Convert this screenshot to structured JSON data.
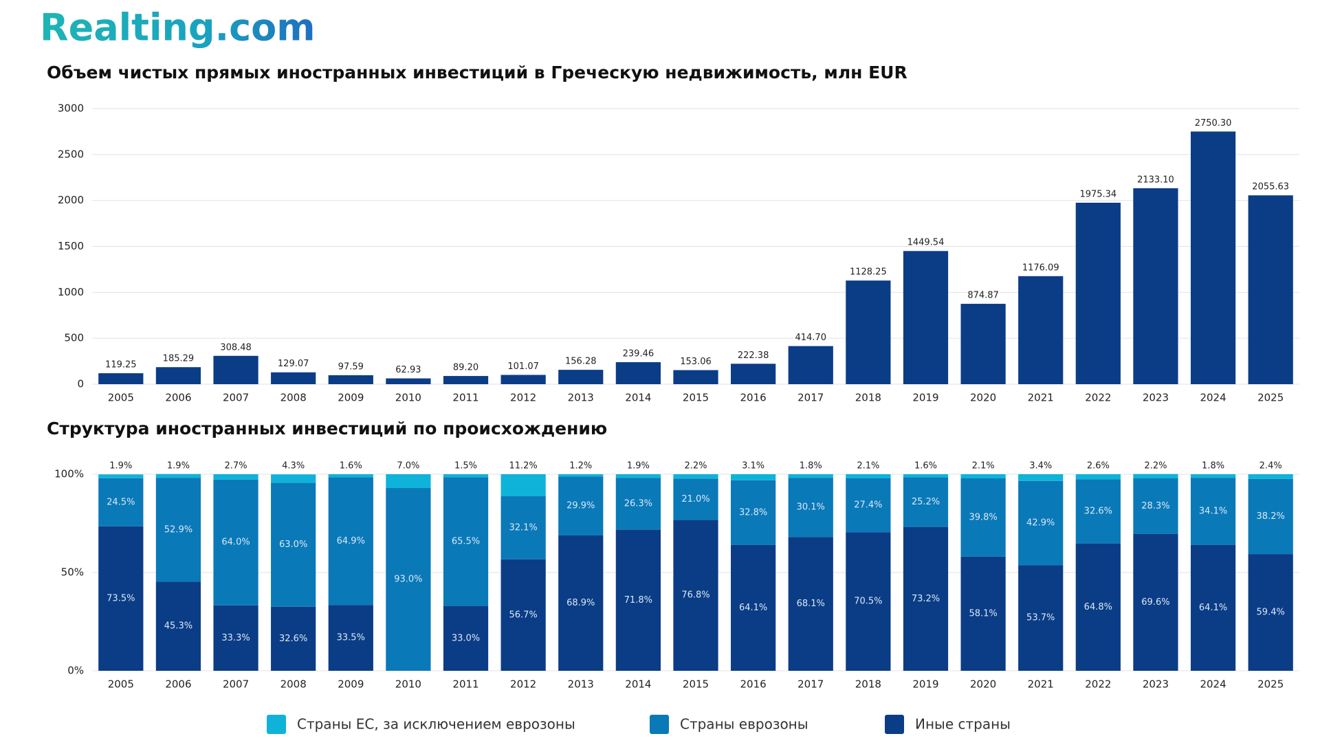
{
  "header": {
    "logo": "Realting.com"
  },
  "chart_data": [
    {
      "type": "bar",
      "title": "Объем чистых прямых иностранных инвестиций в Греческую недвижимость, млн EUR",
      "categories": [
        "2005",
        "2006",
        "2007",
        "2008",
        "2009",
        "2010",
        "2011",
        "2012",
        "2013",
        "2014",
        "2015",
        "2016",
        "2017",
        "2018",
        "2019",
        "2020",
        "2021",
        "2022",
        "2023",
        "2024",
        "2025"
      ],
      "values": [
        119.25,
        185.29,
        308.48,
        129.07,
        97.59,
        62.93,
        89.2,
        101.07,
        156.28,
        239.46,
        153.06,
        222.38,
        414.7,
        1128.25,
        1449.54,
        874.87,
        1176.09,
        1975.34,
        2133.1,
        2750.3,
        2055.63
      ],
      "value_labels": [
        "119.25",
        "185.29",
        "308.48",
        "129.07",
        "97.59",
        "62.93",
        "89.20",
        "101.07",
        "156.28",
        "239.46",
        "153.06",
        "222.38",
        "414.70",
        "1128.25",
        "1449.54",
        "874.87",
        "1176.09",
        "1975.34",
        "2133.10",
        "2750.30",
        "2055.63"
      ],
      "color": "#0b3d86",
      "ylim": [
        0,
        3000
      ],
      "yticks": [
        0,
        500,
        1000,
        1500,
        2000,
        2500,
        3000
      ],
      "grid": true
    },
    {
      "type": "stacked_bar",
      "title": "Структура иностранных инвестиций по происхождению",
      "categories": [
        "2005",
        "2006",
        "2007",
        "2008",
        "2009",
        "2010",
        "2011",
        "2012",
        "2013",
        "2014",
        "2015",
        "2016",
        "2017",
        "2018",
        "2019",
        "2020",
        "2021",
        "2022",
        "2023",
        "2024",
        "2025"
      ],
      "series": [
        {
          "name": "Иные страны",
          "color": "#0b3d86",
          "values": [
            73.5,
            45.3,
            33.3,
            32.6,
            33.5,
            null,
            33.0,
            56.7,
            68.9,
            71.8,
            76.8,
            64.1,
            68.1,
            70.5,
            73.2,
            58.1,
            53.7,
            64.8,
            69.6,
            64.1,
            59.4
          ],
          "value_labels": [
            "73.5%",
            "45.3%",
            "33.3%",
            "32.6%",
            "33.5%",
            null,
            "33.0%",
            "56.7%",
            "68.9%",
            "71.8%",
            "76.8%",
            "64.1%",
            "68.1%",
            "70.5%",
            "73.2%",
            "58.1%",
            "53.7%",
            "64.8%",
            "69.6%",
            "64.1%",
            "59.4%"
          ]
        },
        {
          "name": "Страны еврозоны",
          "color": "#0a79b8",
          "values": [
            24.5,
            52.9,
            64.0,
            63.0,
            64.9,
            93.0,
            65.5,
            32.1,
            29.9,
            26.3,
            21.0,
            32.8,
            30.1,
            27.4,
            25.2,
            39.8,
            42.9,
            32.6,
            28.3,
            34.1,
            38.2
          ],
          "value_labels": [
            "24.5%",
            "52.9%",
            "64.0%",
            "63.0%",
            "64.9%",
            "93.0%",
            "65.5%",
            "32.1%",
            "29.9%",
            "26.3%",
            "21.0%",
            "32.8%",
            "30.1%",
            "27.4%",
            "25.2%",
            "39.8%",
            "42.9%",
            "32.6%",
            "28.3%",
            "34.1%",
            "38.2%"
          ]
        },
        {
          "name": "Страны ЕС, за исключением еврозоны",
          "color": "#0fb3d9",
          "values": [
            1.9,
            1.9,
            2.7,
            4.3,
            1.6,
            7.0,
            1.5,
            11.2,
            1.2,
            1.9,
            2.2,
            3.1,
            1.8,
            2.1,
            1.6,
            2.1,
            3.4,
            2.6,
            2.2,
            1.8,
            2.4
          ],
          "value_labels": [
            "1.9%",
            "1.9%",
            "2.7%",
            "4.3%",
            "1.6%",
            "7.0%",
            "1.5%",
            "11.2%",
            "1.2%",
            "1.9%",
            "2.2%",
            "3.1%",
            "1.8%",
            "2.1%",
            "1.6%",
            "2.1%",
            "3.4%",
            "2.6%",
            "2.2%",
            "1.8%",
            "2.4%"
          ]
        }
      ],
      "ylim": [
        0,
        100
      ],
      "yticks": [
        {
          "value": 0,
          "label": "0%"
        },
        {
          "value": 50,
          "label": "50%"
        },
        {
          "value": 100,
          "label": "100%"
        }
      ],
      "grid": true
    }
  ]
}
